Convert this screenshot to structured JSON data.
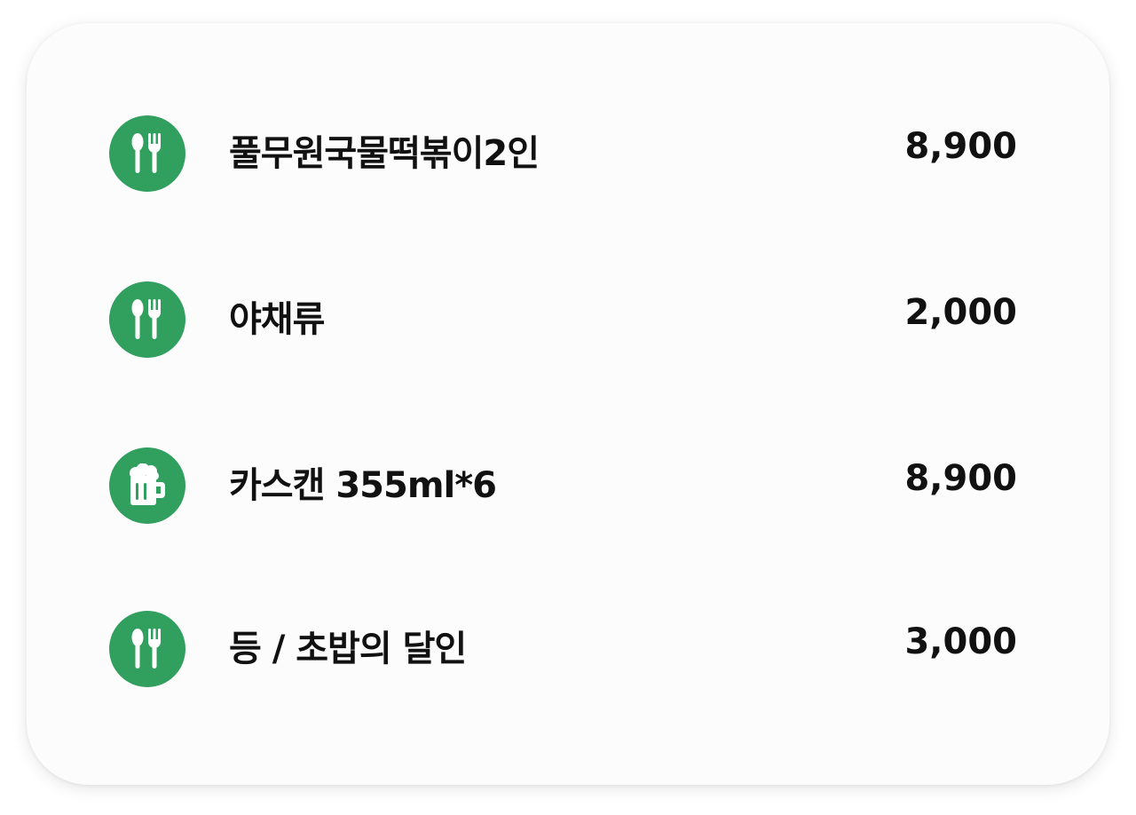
{
  "receipt": {
    "items": [
      {
        "name": "풀무원국물떡볶이2인",
        "price": "8,900",
        "icon": "utensils-icon"
      },
      {
        "name": "야채류",
        "price": "2,000",
        "icon": "utensils-icon"
      },
      {
        "name": "카스캔 355ml*6",
        "price": "8,900",
        "icon": "beer-mug-icon"
      },
      {
        "name": "등 / 초밥의 달인",
        "price": "3,000",
        "icon": "utensils-icon"
      }
    ]
  },
  "colors": {
    "icon_background": "#319f5e",
    "card_background": "#fcfcfc",
    "text": "#111111"
  }
}
